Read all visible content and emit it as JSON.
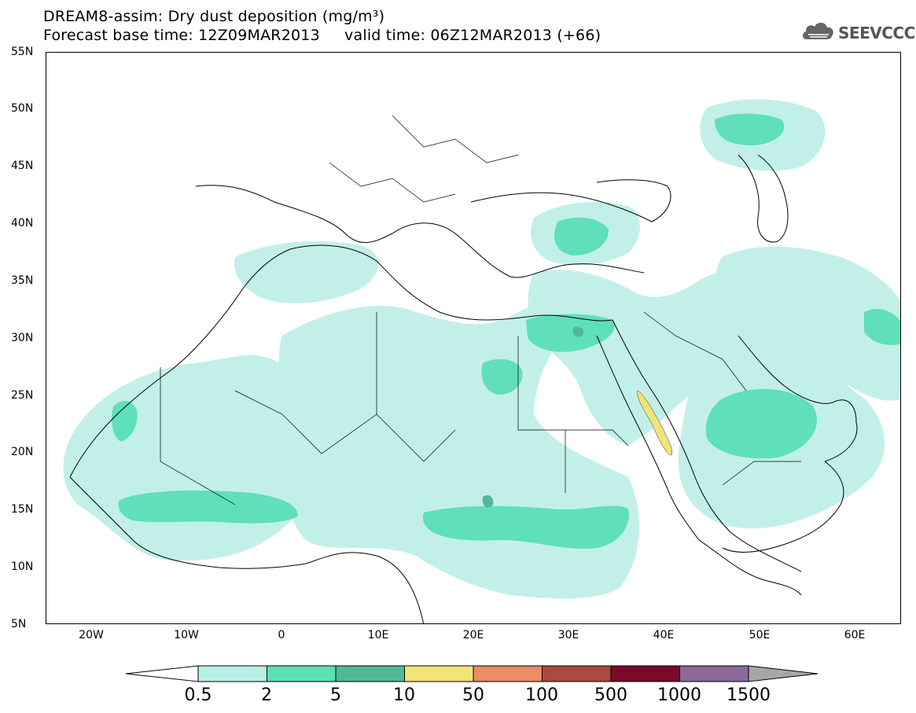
{
  "header": {
    "title": "DREAM8-assim: Dry dust deposition (mg/m³)",
    "subtitle": "Forecast base time: 12Z09MAR2013     valid time: 06Z12MAR2013 (+66)",
    "logo_text": "SEEVCCC"
  },
  "map": {
    "lat_labels": [
      "55N",
      "50N",
      "45N",
      "40N",
      "35N",
      "30N",
      "25N",
      "20N",
      "15N",
      "10N",
      "5N"
    ],
    "lon_labels": [
      "20W",
      "10W",
      "0",
      "10E",
      "20E",
      "30E",
      "40E",
      "50E",
      "60E"
    ],
    "extent": {
      "lon_min": -25,
      "lon_max": 65,
      "lat_min": 5,
      "lat_max": 55
    }
  },
  "legend": {
    "labels": [
      "0.5",
      "2",
      "5",
      "10",
      "50",
      "100",
      "500",
      "1000",
      "1500"
    ],
    "colors": [
      "#b8f0e6",
      "#5ee0b6",
      "#52b894",
      "#f2e27a",
      "#ea8c66",
      "#aa4a3e",
      "#7a0a2a",
      "#8a6a9a",
      "#a6a6a6"
    ],
    "below_color": "#ffffff"
  },
  "colors": {
    "level_05": "#c2f0e8",
    "level_2": "#5fe0b8",
    "level_5": "#52b894",
    "level_10": "#f2e27a",
    "coastline": "#000000"
  }
}
